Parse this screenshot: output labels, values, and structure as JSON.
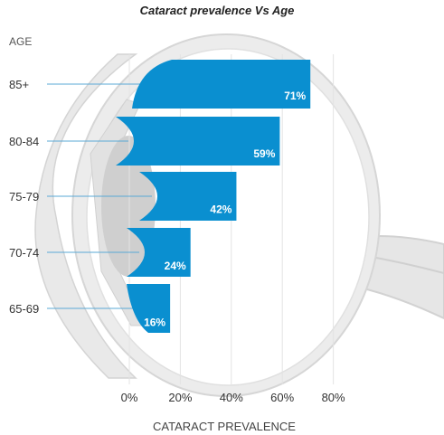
{
  "chart_data": {
    "type": "bar",
    "orientation": "horizontal",
    "title": "Cataract prevalence Vs Age",
    "ylabel": "AGE",
    "xlabel": "CATARACT PREVALENCE",
    "categories": [
      "85+",
      "80-84",
      "75-79",
      "70-74",
      "65-69"
    ],
    "values": [
      71,
      59,
      42,
      24,
      16
    ],
    "value_labels": [
      "71%",
      "59%",
      "42%",
      "24%",
      "16%"
    ],
    "xlim": [
      0,
      80
    ],
    "xticks": [
      0,
      20,
      40,
      60,
      80
    ],
    "xtick_labels": [
      "0%",
      "20%",
      "40%",
      "60%",
      "80%"
    ],
    "grid": true,
    "bar_color": "#0a8fd0"
  },
  "background": {
    "illustration": "eye-cross-section",
    "colors": {
      "eye": "#e8e8e8",
      "eye_outline": "#d4d4d4",
      "lens": "#cfcfcf"
    }
  }
}
